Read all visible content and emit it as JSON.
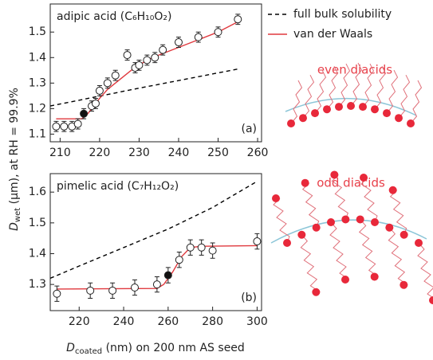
{
  "x_label": {
    "main": "D",
    "sub": "coated",
    "rest": " (nm) on 200 nm AS seed"
  },
  "y_label": {
    "main": "D",
    "sub": "wet",
    "rest": " (μm), at RH = 99.9%"
  },
  "illustrations": [
    "even diacids",
    "odd diacids"
  ],
  "chart_data": [
    {
      "type": "scatter",
      "title": "adipic acid (C₆H₁₀O₂)",
      "panel": "(a)",
      "x": [
        209,
        211,
        213,
        214.5,
        216,
        218,
        219,
        220,
        222,
        224,
        227,
        229,
        230,
        232,
        234,
        236,
        240,
        245,
        250,
        255
      ],
      "values": [
        1.13,
        1.13,
        1.13,
        1.14,
        1.18,
        1.21,
        1.22,
        1.27,
        1.3,
        1.33,
        1.41,
        1.36,
        1.37,
        1.39,
        1.4,
        1.43,
        1.46,
        1.48,
        1.5,
        1.55
      ],
      "errors": [
        0.02,
        0.02,
        0.02,
        0.02,
        0.02,
        0.02,
        0.02,
        0.02,
        0.02,
        0.02,
        0.02,
        0.02,
        0.02,
        0.02,
        0.02,
        0.02,
        0.02,
        0.02,
        0.02,
        0.02
      ],
      "filled": [
        false,
        false,
        false,
        false,
        true,
        false,
        false,
        false,
        false,
        false,
        false,
        false,
        false,
        false,
        false,
        false,
        false,
        false,
        false,
        false
      ],
      "lines": [
        {
          "name": "full bulk solubility",
          "style": "dashed",
          "color": "#000000",
          "x": [
            207.5,
            230,
            255
          ],
          "values": [
            1.21,
            1.28,
            1.355
          ]
        },
        {
          "name": "van der Waals",
          "style": "solid",
          "color": "#e0393e",
          "x": [
            209,
            215.5,
            217,
            218,
            219,
            220,
            222,
            224,
            226,
            228,
            230,
            232,
            235,
            240,
            245,
            250,
            255
          ],
          "values": [
            1.16,
            1.16,
            1.18,
            1.2,
            1.22,
            1.24,
            1.275,
            1.3,
            1.325,
            1.35,
            1.37,
            1.39,
            1.41,
            1.44,
            1.47,
            1.5,
            1.54
          ]
        }
      ],
      "xlim": [
        207.5,
        261
      ],
      "xticks": [
        210,
        220,
        230,
        240,
        250,
        260
      ],
      "ylim": [
        1.07,
        1.61
      ],
      "yticks": [
        1.1,
        1.2,
        1.3,
        1.4,
        1.5
      ]
    },
    {
      "type": "scatter",
      "title": "pimelic acid (C₇H₁₂O₂)",
      "panel": "(b)",
      "x": [
        210,
        225,
        235,
        245,
        255,
        260,
        265,
        270,
        275,
        280,
        300
      ],
      "values": [
        1.27,
        1.28,
        1.28,
        1.29,
        1.3,
        1.33,
        1.38,
        1.42,
        1.42,
        1.41,
        1.44
      ],
      "errors": [
        0.025,
        0.025,
        0.025,
        0.025,
        0.025,
        0.025,
        0.025,
        0.025,
        0.025,
        0.025,
        0.025
      ],
      "filled": [
        false,
        false,
        false,
        false,
        false,
        true,
        false,
        false,
        false,
        false,
        false
      ],
      "lines": [
        {
          "style": "dashed",
          "color": "#000000",
          "x": [
            207,
            220,
            240,
            260,
            280,
            300
          ],
          "values": [
            1.32,
            1.36,
            1.42,
            1.48,
            1.55,
            1.635
          ]
        },
        {
          "style": "solid",
          "color": "#e0393e",
          "x": [
            210,
            255,
            258,
            262,
            266,
            270,
            275,
            300
          ],
          "values": [
            1.285,
            1.287,
            1.3,
            1.34,
            1.39,
            1.42,
            1.424,
            1.426
          ]
        }
      ],
      "xlim": [
        207,
        302
      ],
      "xticks": [
        220,
        240,
        260,
        280,
        300
      ],
      "ylim": [
        1.215,
        1.66
      ],
      "yticks": [
        1.3,
        1.4,
        1.5,
        1.6
      ]
    }
  ]
}
